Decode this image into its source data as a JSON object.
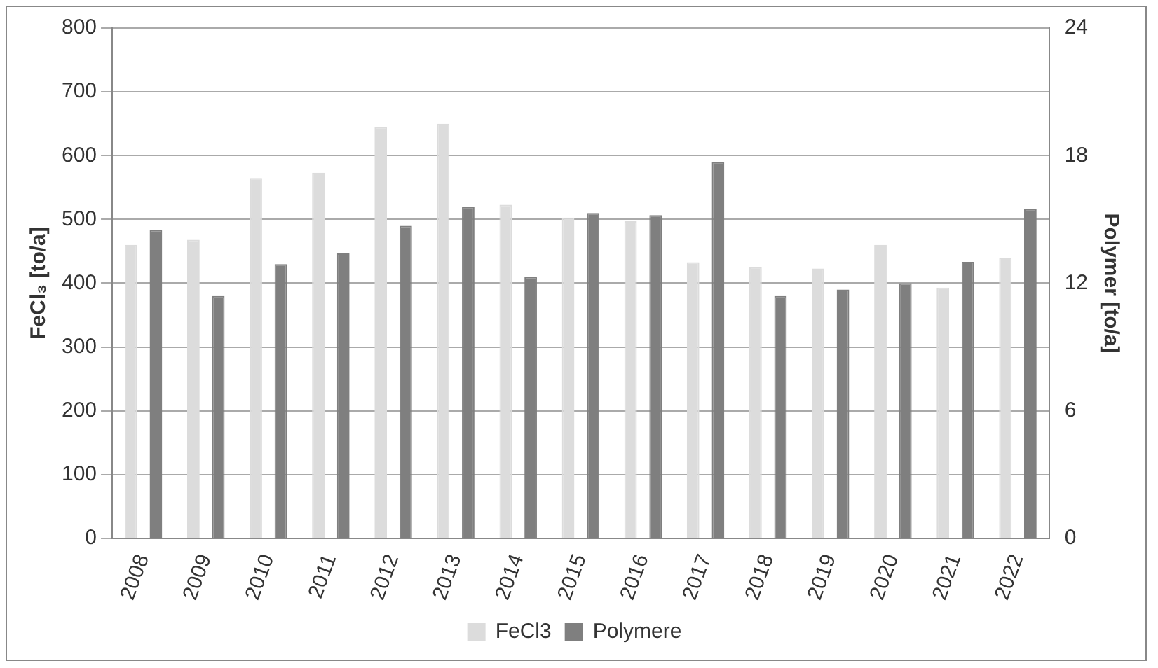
{
  "chart_data": {
    "type": "bar",
    "ylabel": "FeCl₃ [to/a]",
    "y2label": "Polymer [to/a]",
    "categories": [
      "2008",
      "2009",
      "2010",
      "2011",
      "2012",
      "2013",
      "2014",
      "2015",
      "2016",
      "2017",
      "2018",
      "2019",
      "2020",
      "2021",
      "2022"
    ],
    "series": [
      {
        "name": "FeCl3",
        "color": "#dcdcdc",
        "values": [
          460,
          468,
          565,
          573,
          645,
          650,
          523,
          503,
          497,
          433,
          425,
          423,
          460,
          393,
          440
        ]
      },
      {
        "name": "Polymere",
        "color": "#7f7f7f",
        "axis": "y2",
        "values": [
          14.5,
          11.4,
          12.9,
          13.4,
          14.7,
          15.6,
          12.3,
          15.3,
          15.2,
          17.7,
          11.4,
          11.7,
          12.0,
          13.0,
          15.5
        ]
      }
    ],
    "ylim": [
      0,
      800
    ],
    "yticks": [
      0,
      100,
      200,
      300,
      400,
      500,
      600,
      700,
      800
    ],
    "y2lim": [
      0,
      24
    ],
    "y2ticks": [
      0,
      6,
      12,
      18,
      24
    ],
    "grid": "y",
    "legend": "bottom"
  }
}
